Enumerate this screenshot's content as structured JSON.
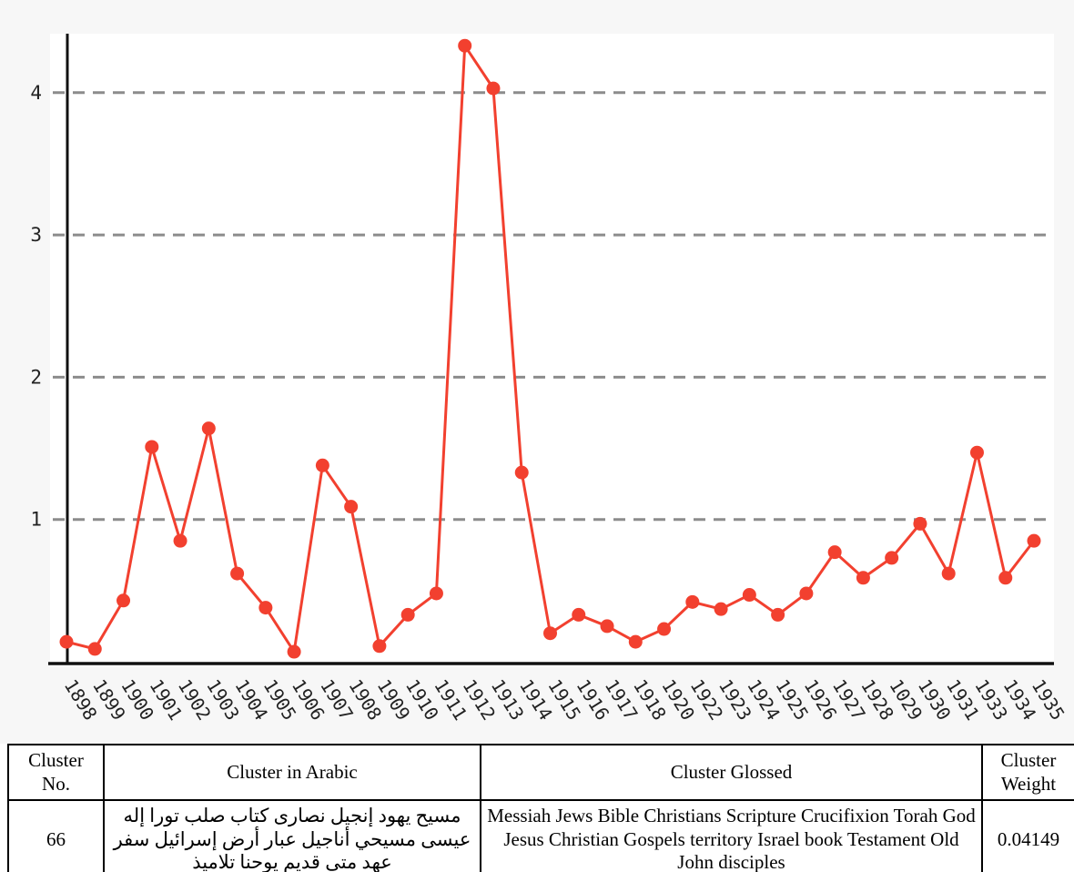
{
  "chart_data": {
    "type": "line",
    "title": "",
    "xlabel": "",
    "ylabel": "",
    "categories": [
      "1898",
      "1899",
      "1900",
      "1901",
      "1902",
      "1903",
      "1904",
      "1905",
      "1906",
      "1907",
      "1908",
      "1909",
      "1910",
      "1911",
      "1912",
      "1913",
      "1914",
      "1915",
      "1916",
      "1917",
      "1918",
      "1920",
      "1922",
      "1923",
      "1924",
      "1925",
      "1926",
      "1927",
      "1928",
      "1029",
      "1930",
      "1931",
      "1933",
      "1934",
      "1935"
    ],
    "series": [
      {
        "name": "cluster-weight-over-time",
        "values": [
          0.14,
          0.09,
          0.43,
          1.51,
          0.85,
          1.64,
          0.62,
          0.38,
          0.07,
          1.38,
          1.09,
          0.11,
          0.33,
          0.48,
          4.33,
          4.03,
          1.33,
          0.2,
          0.33,
          0.25,
          0.14,
          0.23,
          0.42,
          0.37,
          0.47,
          0.33,
          0.48,
          0.77,
          0.59,
          0.73,
          0.97,
          0.62,
          1.47,
          0.59,
          0.85
        ]
      }
    ],
    "yticks": [
      1,
      2,
      3,
      4
    ],
    "ylim": [
      0,
      4.5
    ],
    "grid": "dashed-horizontal",
    "legend": "none",
    "colors": {
      "line": "#f2402f",
      "marker": "#f2402f",
      "grid": "#8c8c8c",
      "axis": "#111111",
      "figure_bg": "#f7f7f7",
      "plot_bg": "#ffffff",
      "tick_text": "#222222"
    }
  },
  "table": {
    "headers": {
      "no": "Cluster No.",
      "arabic": "Cluster in Arabic",
      "glossed": "Cluster Glossed",
      "weight": "Cluster Weight"
    },
    "row": {
      "no": "66",
      "arabic": "مسيح يهود إنجيل نصارى كتاب صلب تورا إله عيسى مسيحي أناجيل عبار أرض إسرائيل سفر عهد متى قديم يوحنا تلاميذ",
      "glossed": "Messiah Jews Bible Christians Scripture Crucifixion Torah God Jesus Christian Gospels territory Israel book Testament Old John disciples",
      "weight": "0.04149"
    }
  }
}
